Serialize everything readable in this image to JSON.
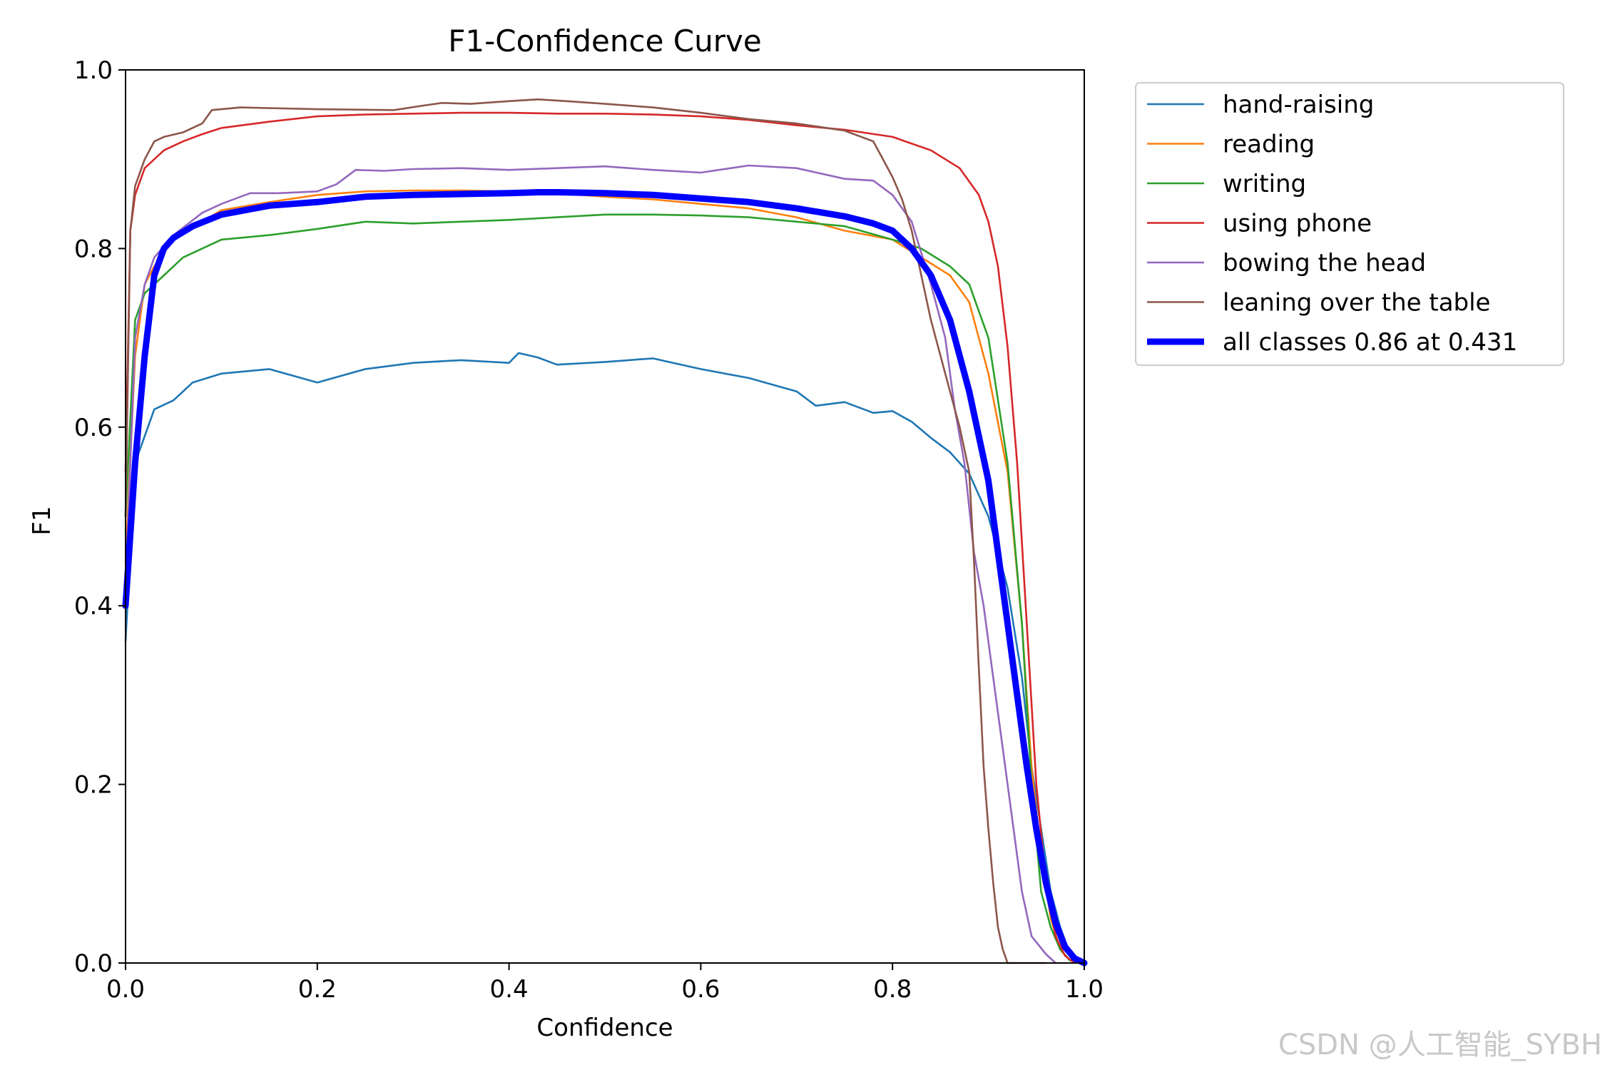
{
  "chart_data": {
    "type": "line",
    "title": "F1-Confidence Curve",
    "xlabel": "Confidence",
    "ylabel": "F1",
    "xlim": [
      0.0,
      1.0
    ],
    "ylim": [
      0.0,
      1.0
    ],
    "xticks": [
      "0.0",
      "0.2",
      "0.4",
      "0.6",
      "0.8",
      "1.0"
    ],
    "yticks": [
      "0.0",
      "0.2",
      "0.4",
      "0.6",
      "0.8",
      "1.0"
    ],
    "grid": false,
    "legend_position": "outside-right",
    "series": [
      {
        "name": "hand-raising",
        "color": "#1f77b4",
        "points": [
          [
            0.0,
            0.36
          ],
          [
            0.01,
            0.56
          ],
          [
            0.03,
            0.62
          ],
          [
            0.05,
            0.63
          ],
          [
            0.07,
            0.65
          ],
          [
            0.1,
            0.66
          ],
          [
            0.15,
            0.665
          ],
          [
            0.2,
            0.65
          ],
          [
            0.25,
            0.665
          ],
          [
            0.3,
            0.672
          ],
          [
            0.35,
            0.675
          ],
          [
            0.4,
            0.672
          ],
          [
            0.41,
            0.683
          ],
          [
            0.43,
            0.678
          ],
          [
            0.45,
            0.67
          ],
          [
            0.5,
            0.673
          ],
          [
            0.55,
            0.677
          ],
          [
            0.6,
            0.665
          ],
          [
            0.65,
            0.655
          ],
          [
            0.7,
            0.64
          ],
          [
            0.72,
            0.624
          ],
          [
            0.75,
            0.628
          ],
          [
            0.78,
            0.616
          ],
          [
            0.8,
            0.618
          ],
          [
            0.82,
            0.606
          ],
          [
            0.84,
            0.588
          ],
          [
            0.86,
            0.572
          ],
          [
            0.88,
            0.548
          ],
          [
            0.9,
            0.5
          ],
          [
            0.92,
            0.42
          ],
          [
            0.935,
            0.32
          ],
          [
            0.945,
            0.22
          ],
          [
            0.955,
            0.15
          ],
          [
            0.965,
            0.08
          ],
          [
            0.975,
            0.04
          ],
          [
            0.985,
            0.01
          ],
          [
            0.995,
            0.002
          ]
        ]
      },
      {
        "name": "reading",
        "color": "#ff7f0e",
        "points": [
          [
            0.0,
            0.45
          ],
          [
            0.01,
            0.68
          ],
          [
            0.02,
            0.76
          ],
          [
            0.03,
            0.78
          ],
          [
            0.05,
            0.81
          ],
          [
            0.08,
            0.83
          ],
          [
            0.1,
            0.843
          ],
          [
            0.15,
            0.852
          ],
          [
            0.2,
            0.86
          ],
          [
            0.25,
            0.864
          ],
          [
            0.3,
            0.865
          ],
          [
            0.35,
            0.865
          ],
          [
            0.4,
            0.864
          ],
          [
            0.45,
            0.862
          ],
          [
            0.5,
            0.858
          ],
          [
            0.55,
            0.855
          ],
          [
            0.6,
            0.85
          ],
          [
            0.65,
            0.845
          ],
          [
            0.7,
            0.835
          ],
          [
            0.75,
            0.82
          ],
          [
            0.8,
            0.81
          ],
          [
            0.83,
            0.79
          ],
          [
            0.86,
            0.77
          ],
          [
            0.88,
            0.74
          ],
          [
            0.9,
            0.66
          ],
          [
            0.92,
            0.55
          ],
          [
            0.935,
            0.38
          ],
          [
            0.945,
            0.22
          ],
          [
            0.955,
            0.12
          ],
          [
            0.965,
            0.05
          ],
          [
            0.975,
            0.015
          ],
          [
            0.985,
            0.003
          ],
          [
            0.995,
            0.0
          ]
        ]
      },
      {
        "name": "writing",
        "color": "#2ca02c",
        "points": [
          [
            0.0,
            0.5
          ],
          [
            0.01,
            0.72
          ],
          [
            0.02,
            0.75
          ],
          [
            0.04,
            0.77
          ],
          [
            0.06,
            0.79
          ],
          [
            0.08,
            0.8
          ],
          [
            0.1,
            0.81
          ],
          [
            0.15,
            0.815
          ],
          [
            0.2,
            0.822
          ],
          [
            0.25,
            0.83
          ],
          [
            0.3,
            0.828
          ],
          [
            0.35,
            0.83
          ],
          [
            0.4,
            0.832
          ],
          [
            0.45,
            0.835
          ],
          [
            0.5,
            0.838
          ],
          [
            0.55,
            0.838
          ],
          [
            0.6,
            0.837
          ],
          [
            0.65,
            0.835
          ],
          [
            0.7,
            0.83
          ],
          [
            0.75,
            0.825
          ],
          [
            0.8,
            0.81
          ],
          [
            0.83,
            0.8
          ],
          [
            0.86,
            0.78
          ],
          [
            0.88,
            0.76
          ],
          [
            0.9,
            0.7
          ],
          [
            0.92,
            0.56
          ],
          [
            0.935,
            0.38
          ],
          [
            0.945,
            0.2
          ],
          [
            0.955,
            0.08
          ],
          [
            0.965,
            0.04
          ],
          [
            0.975,
            0.015
          ],
          [
            0.985,
            0.003
          ],
          [
            0.995,
            0.0
          ]
        ]
      },
      {
        "name": "using phone",
        "color": "#d62728",
        "points": [
          [
            0.0,
            0.55
          ],
          [
            0.005,
            0.82
          ],
          [
            0.01,
            0.86
          ],
          [
            0.02,
            0.89
          ],
          [
            0.04,
            0.91
          ],
          [
            0.06,
            0.92
          ],
          [
            0.08,
            0.928
          ],
          [
            0.1,
            0.935
          ],
          [
            0.15,
            0.942
          ],
          [
            0.2,
            0.948
          ],
          [
            0.25,
            0.95
          ],
          [
            0.3,
            0.951
          ],
          [
            0.35,
            0.952
          ],
          [
            0.4,
            0.952
          ],
          [
            0.45,
            0.951
          ],
          [
            0.5,
            0.951
          ],
          [
            0.55,
            0.95
          ],
          [
            0.6,
            0.948
          ],
          [
            0.65,
            0.944
          ],
          [
            0.7,
            0.938
          ],
          [
            0.75,
            0.933
          ],
          [
            0.8,
            0.925
          ],
          [
            0.84,
            0.91
          ],
          [
            0.87,
            0.89
          ],
          [
            0.89,
            0.86
          ],
          [
            0.9,
            0.83
          ],
          [
            0.91,
            0.78
          ],
          [
            0.92,
            0.69
          ],
          [
            0.93,
            0.56
          ],
          [
            0.94,
            0.38
          ],
          [
            0.95,
            0.2
          ],
          [
            0.96,
            0.09
          ],
          [
            0.97,
            0.03
          ],
          [
            0.98,
            0.008
          ],
          [
            0.99,
            0.0
          ]
        ]
      },
      {
        "name": "bowing the head",
        "color": "#9467bd",
        "points": [
          [
            0.0,
            0.42
          ],
          [
            0.01,
            0.7
          ],
          [
            0.02,
            0.76
          ],
          [
            0.03,
            0.79
          ],
          [
            0.05,
            0.815
          ],
          [
            0.08,
            0.84
          ],
          [
            0.1,
            0.85
          ],
          [
            0.13,
            0.862
          ],
          [
            0.16,
            0.862
          ],
          [
            0.2,
            0.864
          ],
          [
            0.22,
            0.872
          ],
          [
            0.24,
            0.888
          ],
          [
            0.27,
            0.887
          ],
          [
            0.3,
            0.889
          ],
          [
            0.35,
            0.89
          ],
          [
            0.4,
            0.888
          ],
          [
            0.45,
            0.89
          ],
          [
            0.5,
            0.892
          ],
          [
            0.55,
            0.888
          ],
          [
            0.6,
            0.885
          ],
          [
            0.65,
            0.893
          ],
          [
            0.7,
            0.89
          ],
          [
            0.75,
            0.878
          ],
          [
            0.78,
            0.876
          ],
          [
            0.8,
            0.86
          ],
          [
            0.82,
            0.83
          ],
          [
            0.84,
            0.76
          ],
          [
            0.855,
            0.7
          ],
          [
            0.865,
            0.62
          ],
          [
            0.875,
            0.56
          ],
          [
            0.885,
            0.46
          ],
          [
            0.895,
            0.4
          ],
          [
            0.905,
            0.32
          ],
          [
            0.915,
            0.24
          ],
          [
            0.925,
            0.16
          ],
          [
            0.935,
            0.08
          ],
          [
            0.945,
            0.03
          ],
          [
            0.96,
            0.01
          ],
          [
            0.97,
            0.0
          ]
        ]
      },
      {
        "name": "leaning over the table",
        "color": "#8c564b",
        "points": [
          [
            0.0,
            0.5
          ],
          [
            0.005,
            0.82
          ],
          [
            0.01,
            0.87
          ],
          [
            0.02,
            0.9
          ],
          [
            0.03,
            0.92
          ],
          [
            0.04,
            0.925
          ],
          [
            0.06,
            0.93
          ],
          [
            0.08,
            0.94
          ],
          [
            0.09,
            0.955
          ],
          [
            0.12,
            0.958
          ],
          [
            0.2,
            0.956
          ],
          [
            0.28,
            0.955
          ],
          [
            0.31,
            0.96
          ],
          [
            0.33,
            0.963
          ],
          [
            0.36,
            0.962
          ],
          [
            0.4,
            0.965
          ],
          [
            0.43,
            0.967
          ],
          [
            0.46,
            0.965
          ],
          [
            0.5,
            0.962
          ],
          [
            0.55,
            0.958
          ],
          [
            0.6,
            0.952
          ],
          [
            0.65,
            0.945
          ],
          [
            0.7,
            0.94
          ],
          [
            0.75,
            0.932
          ],
          [
            0.78,
            0.92
          ],
          [
            0.79,
            0.9
          ],
          [
            0.8,
            0.88
          ],
          [
            0.81,
            0.855
          ],
          [
            0.82,
            0.82
          ],
          [
            0.83,
            0.77
          ],
          [
            0.84,
            0.72
          ],
          [
            0.85,
            0.68
          ],
          [
            0.86,
            0.64
          ],
          [
            0.87,
            0.6
          ],
          [
            0.88,
            0.55
          ],
          [
            0.885,
            0.45
          ],
          [
            0.89,
            0.33
          ],
          [
            0.895,
            0.22
          ],
          [
            0.9,
            0.15
          ],
          [
            0.905,
            0.09
          ],
          [
            0.91,
            0.04
          ],
          [
            0.915,
            0.015
          ],
          [
            0.92,
            0.0
          ],
          [
            0.96,
            0.0
          ]
        ]
      },
      {
        "name": "all classes 0.86 at 0.431",
        "color": "#0000ff",
        "thick": true,
        "points": [
          [
            0.0,
            0.4
          ],
          [
            0.01,
            0.56
          ],
          [
            0.02,
            0.68
          ],
          [
            0.03,
            0.77
          ],
          [
            0.04,
            0.8
          ],
          [
            0.05,
            0.812
          ],
          [
            0.07,
            0.825
          ],
          [
            0.1,
            0.838
          ],
          [
            0.15,
            0.848
          ],
          [
            0.2,
            0.852
          ],
          [
            0.25,
            0.858
          ],
          [
            0.3,
            0.86
          ],
          [
            0.35,
            0.861
          ],
          [
            0.4,
            0.862
          ],
          [
            0.431,
            0.863
          ],
          [
            0.45,
            0.863
          ],
          [
            0.5,
            0.862
          ],
          [
            0.55,
            0.86
          ],
          [
            0.6,
            0.856
          ],
          [
            0.65,
            0.852
          ],
          [
            0.7,
            0.845
          ],
          [
            0.75,
            0.836
          ],
          [
            0.78,
            0.828
          ],
          [
            0.8,
            0.82
          ],
          [
            0.82,
            0.8
          ],
          [
            0.84,
            0.77
          ],
          [
            0.86,
            0.72
          ],
          [
            0.88,
            0.64
          ],
          [
            0.9,
            0.54
          ],
          [
            0.91,
            0.46
          ],
          [
            0.92,
            0.38
          ],
          [
            0.93,
            0.3
          ],
          [
            0.94,
            0.22
          ],
          [
            0.95,
            0.15
          ],
          [
            0.96,
            0.09
          ],
          [
            0.97,
            0.045
          ],
          [
            0.98,
            0.018
          ],
          [
            0.99,
            0.005
          ],
          [
            1.0,
            0.0
          ]
        ]
      }
    ]
  },
  "watermark": "CSDN @人工智能_SYBH"
}
